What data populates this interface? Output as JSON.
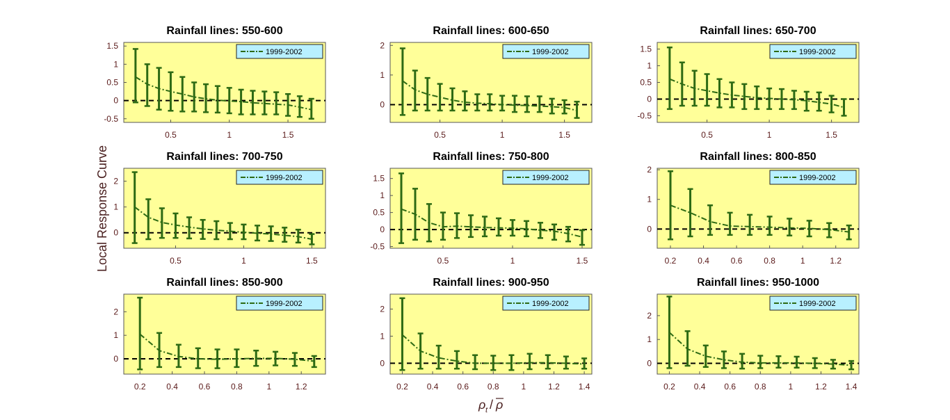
{
  "figure": {
    "ylabel": "Local Response Curve",
    "xlabel_main": "ρ",
    "xlabel_sub": "t",
    "xlabel_sep": "/",
    "xlabel_bar": "ρ",
    "title_prefix": "Rainfall lines:"
  },
  "colors": {
    "plot_bg": "#ffff99",
    "series": "#2d6a14",
    "zero_line": "#000000",
    "legend_bg": "#b8f0ff"
  },
  "chart_data": [
    {
      "type": "line",
      "title": "Rainfall lines: 550-600",
      "range": "550-600",
      "legend": "1999-2002",
      "xlim": [
        0.1,
        1.82
      ],
      "ylim": [
        -0.6,
        1.6
      ],
      "xticks": [
        0.5,
        1,
        1.5
      ],
      "xtick_labels": [
        "0.5",
        "1",
        "1.5"
      ],
      "yticks": [
        -0.5,
        0,
        0.5,
        1,
        1.5
      ],
      "ytick_labels": [
        "-0.5",
        "0",
        "0.5",
        "1",
        "1.5"
      ],
      "x": [
        0.2,
        0.3,
        0.4,
        0.5,
        0.6,
        0.7,
        0.8,
        0.9,
        1.0,
        1.1,
        1.2,
        1.3,
        1.4,
        1.5,
        1.6,
        1.7
      ],
      "y": [
        0.65,
        0.45,
        0.33,
        0.25,
        0.18,
        0.1,
        0.05,
        0.01,
        -0.01,
        -0.03,
        -0.06,
        -0.08,
        -0.1,
        -0.12,
        -0.18,
        -0.25
      ],
      "lower": [
        -0.05,
        -0.15,
        -0.25,
        -0.28,
        -0.3,
        -0.3,
        -0.32,
        -0.33,
        -0.35,
        -0.38,
        -0.38,
        -0.38,
        -0.38,
        -0.42,
        -0.45,
        -0.5
      ],
      "upper": [
        1.42,
        1.0,
        0.9,
        0.78,
        0.65,
        0.5,
        0.45,
        0.4,
        0.35,
        0.3,
        0.27,
        0.25,
        0.23,
        0.18,
        0.12,
        0.05
      ]
    },
    {
      "type": "line",
      "title": "Rainfall lines: 600-650",
      "range": "600-650",
      "legend": "1999-2002",
      "xlim": [
        0.1,
        1.72
      ],
      "ylim": [
        -0.6,
        2.1
      ],
      "xticks": [
        0.5,
        1,
        1.5
      ],
      "xtick_labels": [
        "0.5",
        "1",
        "1.5"
      ],
      "yticks": [
        0,
        1,
        2
      ],
      "ytick_labels": [
        "0",
        "1",
        "2"
      ],
      "x": [
        0.2,
        0.3,
        0.4,
        0.5,
        0.6,
        0.7,
        0.8,
        0.9,
        1.0,
        1.1,
        1.2,
        1.3,
        1.4,
        1.5,
        1.6
      ],
      "y": [
        0.8,
        0.5,
        0.35,
        0.25,
        0.15,
        0.08,
        0.05,
        0.03,
        0.0,
        -0.02,
        -0.03,
        -0.05,
        -0.07,
        -0.1,
        -0.2
      ],
      "lower": [
        -0.35,
        -0.2,
        -0.2,
        -0.2,
        -0.2,
        -0.2,
        -0.2,
        -0.2,
        -0.2,
        -0.25,
        -0.25,
        -0.25,
        -0.3,
        -0.3,
        -0.45
      ],
      "upper": [
        1.9,
        1.15,
        0.9,
        0.7,
        0.55,
        0.45,
        0.35,
        0.35,
        0.3,
        0.3,
        0.28,
        0.28,
        0.2,
        0.15,
        0.1
      ]
    },
    {
      "type": "line",
      "title": "Rainfall lines: 650-700",
      "range": "650-700",
      "legend": "1999-2002",
      "xlim": [
        0.1,
        1.72
      ],
      "ylim": [
        -0.7,
        1.7
      ],
      "xticks": [
        0.5,
        1,
        1.5
      ],
      "xtick_labels": [
        "0.5",
        "1",
        "1.5"
      ],
      "yticks": [
        -0.5,
        0,
        0.5,
        1,
        1.5
      ],
      "ytick_labels": [
        "-0.5",
        "0",
        "0.5",
        "1",
        "1.5"
      ],
      "x": [
        0.2,
        0.3,
        0.4,
        0.5,
        0.6,
        0.7,
        0.8,
        0.9,
        1.0,
        1.1,
        1.2,
        1.3,
        1.4,
        1.5,
        1.6
      ],
      "y": [
        0.6,
        0.45,
        0.32,
        0.25,
        0.18,
        0.12,
        0.08,
        0.04,
        0.02,
        0.0,
        -0.02,
        -0.05,
        -0.1,
        -0.15,
        -0.25
      ],
      "lower": [
        -0.3,
        -0.2,
        -0.2,
        -0.2,
        -0.25,
        -0.25,
        -0.3,
        -0.3,
        -0.3,
        -0.3,
        -0.3,
        -0.35,
        -0.35,
        -0.4,
        -0.5
      ],
      "upper": [
        1.55,
        1.1,
        0.85,
        0.75,
        0.6,
        0.5,
        0.45,
        0.38,
        0.32,
        0.3,
        0.25,
        0.22,
        0.2,
        0.1,
        0.0
      ]
    },
    {
      "type": "line",
      "title": "Rainfall lines: 700-750",
      "range": "700-750",
      "legend": "1999-2002",
      "xlim": [
        0.12,
        1.6
      ],
      "ylim": [
        -0.6,
        2.5
      ],
      "xticks": [
        0.5,
        1,
        1.5
      ],
      "xtick_labels": [
        "0.5",
        "1",
        "1.5"
      ],
      "yticks": [
        0,
        1,
        2
      ],
      "ytick_labels": [
        "0",
        "1",
        "2"
      ],
      "x": [
        0.2,
        0.3,
        0.4,
        0.5,
        0.6,
        0.7,
        0.8,
        0.9,
        1.0,
        1.1,
        1.2,
        1.3,
        1.4,
        1.5
      ],
      "y": [
        1.0,
        0.6,
        0.4,
        0.3,
        0.22,
        0.15,
        0.1,
        0.06,
        0.02,
        -0.02,
        -0.05,
        -0.1,
        -0.15,
        -0.25
      ],
      "lower": [
        -0.4,
        -0.25,
        -0.2,
        -0.2,
        -0.22,
        -0.24,
        -0.25,
        -0.25,
        -0.25,
        -0.3,
        -0.32,
        -0.35,
        -0.38,
        -0.45
      ],
      "upper": [
        2.35,
        1.3,
        0.95,
        0.75,
        0.6,
        0.5,
        0.45,
        0.38,
        0.32,
        0.28,
        0.25,
        0.2,
        0.12,
        -0.05
      ]
    },
    {
      "type": "line",
      "title": "Rainfall lines: 750-800",
      "range": "750-800",
      "legend": "1999-2002",
      "xlim": [
        0.12,
        1.57
      ],
      "ylim": [
        -0.55,
        1.8
      ],
      "xticks": [
        0.5,
        1,
        1.5
      ],
      "xtick_labels": [
        "0.5",
        "1",
        "1.5"
      ],
      "yticks": [
        -0.5,
        0,
        0.5,
        1,
        1.5
      ],
      "ytick_labels": [
        "-0.5",
        "0",
        "0.5",
        "1",
        "1.5"
      ],
      "x": [
        0.2,
        0.3,
        0.4,
        0.5,
        0.6,
        0.7,
        0.8,
        0.9,
        1.0,
        1.1,
        1.2,
        1.3,
        1.4,
        1.5
      ],
      "y": [
        0.6,
        0.45,
        0.2,
        0.08,
        0.1,
        0.08,
        0.06,
        0.05,
        0.04,
        0.02,
        -0.02,
        -0.05,
        -0.12,
        -0.22
      ],
      "lower": [
        -0.4,
        -0.3,
        -0.35,
        -0.3,
        -0.25,
        -0.22,
        -0.2,
        -0.18,
        -0.18,
        -0.2,
        -0.25,
        -0.3,
        -0.35,
        -0.45
      ],
      "upper": [
        1.65,
        1.2,
        0.75,
        0.5,
        0.48,
        0.42,
        0.38,
        0.33,
        0.28,
        0.25,
        0.2,
        0.15,
        0.08,
        -0.02
      ]
    },
    {
      "type": "line",
      "title": "Rainfall lines: 800-850",
      "range": "800-850",
      "legend": "1999-2002",
      "xlim": [
        0.12,
        1.34
      ],
      "ylim": [
        -0.65,
        2.05
      ],
      "xticks": [
        0.2,
        0.4,
        0.6,
        0.8,
        1,
        1.2
      ],
      "xtick_labels": [
        "0.2",
        "0.4",
        "0.6",
        "0.8",
        "1",
        "1.2"
      ],
      "yticks": [
        0,
        1,
        2
      ],
      "ytick_labels": [
        "0",
        "1",
        "2"
      ],
      "x": [
        0.2,
        0.32,
        0.44,
        0.56,
        0.68,
        0.8,
        0.92,
        1.04,
        1.16,
        1.28
      ],
      "y": [
        0.8,
        0.55,
        0.25,
        0.1,
        0.08,
        0.06,
        0.04,
        0.02,
        -0.02,
        -0.1
      ],
      "lower": [
        -0.35,
        -0.25,
        -0.2,
        -0.2,
        -0.2,
        -0.2,
        -0.22,
        -0.25,
        -0.28,
        -0.35
      ],
      "upper": [
        1.95,
        1.35,
        0.8,
        0.55,
        0.48,
        0.42,
        0.35,
        0.28,
        0.2,
        0.12
      ]
    },
    {
      "type": "line",
      "title": "Rainfall lines: 850-900",
      "range": "850-900",
      "legend": "1999-2002",
      "xlim": [
        0.1,
        1.35
      ],
      "ylim": [
        -0.65,
        2.75
      ],
      "xticks": [
        0.2,
        0.4,
        0.6,
        0.8,
        1,
        1.2
      ],
      "xtick_labels": [
        "0.2",
        "0.4",
        "0.6",
        "0.8",
        "1",
        "1.2"
      ],
      "yticks": [
        0,
        1,
        2
      ],
      "ytick_labels": [
        "0",
        "1",
        "2"
      ],
      "x": [
        0.2,
        0.32,
        0.44,
        0.56,
        0.68,
        0.8,
        0.92,
        1.04,
        1.16,
        1.28
      ],
      "y": [
        1.05,
        0.35,
        0.1,
        0.0,
        -0.02,
        0.0,
        0.02,
        0.02,
        -0.02,
        -0.1
      ],
      "lower": [
        -0.45,
        -0.35,
        -0.35,
        -0.4,
        -0.4,
        -0.35,
        -0.3,
        -0.28,
        -0.3,
        -0.35
      ],
      "upper": [
        2.6,
        1.1,
        0.6,
        0.45,
        0.4,
        0.4,
        0.35,
        0.3,
        0.25,
        0.12
      ]
    },
    {
      "type": "line",
      "title": "Rainfall lines: 900-950",
      "range": "900-950",
      "legend": "1999-2002",
      "xlim": [
        0.12,
        1.45
      ],
      "ylim": [
        -0.4,
        2.55
      ],
      "xticks": [
        0.2,
        0.4,
        0.6,
        0.8,
        1,
        1.2,
        1.4
      ],
      "xtick_labels": [
        "0.2",
        "0.4",
        "0.6",
        "0.8",
        "1",
        "1.2",
        "1.4"
      ],
      "yticks": [
        0,
        1,
        2
      ],
      "ytick_labels": [
        "0",
        "1",
        "2"
      ],
      "x": [
        0.2,
        0.32,
        0.44,
        0.56,
        0.68,
        0.8,
        0.92,
        1.04,
        1.16,
        1.28,
        1.4
      ],
      "y": [
        1.05,
        0.45,
        0.2,
        0.08,
        0.0,
        0.0,
        0.0,
        0.02,
        0.02,
        0.0,
        -0.03
      ],
      "lower": [
        -0.25,
        -0.2,
        -0.2,
        -0.2,
        -0.22,
        -0.25,
        -0.25,
        -0.22,
        -0.2,
        -0.2,
        -0.2
      ],
      "upper": [
        2.4,
        1.1,
        0.65,
        0.45,
        0.3,
        0.28,
        0.3,
        0.35,
        0.3,
        0.25,
        0.18
      ]
    },
    {
      "type": "line",
      "title": "Rainfall lines: 950-1000",
      "range": "950-1000",
      "legend": "1999-2002",
      "xlim": [
        0.12,
        1.45
      ],
      "ylim": [
        -0.45,
        2.9
      ],
      "xticks": [
        0.2,
        0.4,
        0.6,
        0.8,
        1,
        1.2,
        1.4
      ],
      "xtick_labels": [
        "0.2",
        "0.4",
        "0.6",
        "0.8",
        "1",
        "1.2",
        "1.4"
      ],
      "yticks": [
        0,
        1,
        2
      ],
      "ytick_labels": [
        "0",
        "1",
        "2"
      ],
      "x": [
        0.2,
        0.32,
        0.44,
        0.56,
        0.68,
        0.8,
        0.92,
        1.04,
        1.16,
        1.28,
        1.4
      ],
      "y": [
        1.3,
        0.6,
        0.3,
        0.15,
        0.05,
        0.02,
        0.02,
        0.02,
        0.0,
        -0.03,
        -0.08
      ],
      "lower": [
        -0.2,
        -0.1,
        -0.15,
        -0.2,
        -0.22,
        -0.2,
        -0.18,
        -0.18,
        -0.2,
        -0.22,
        -0.25
      ],
      "upper": [
        2.8,
        1.35,
        0.75,
        0.5,
        0.4,
        0.32,
        0.3,
        0.28,
        0.22,
        0.15,
        0.1
      ]
    }
  ]
}
